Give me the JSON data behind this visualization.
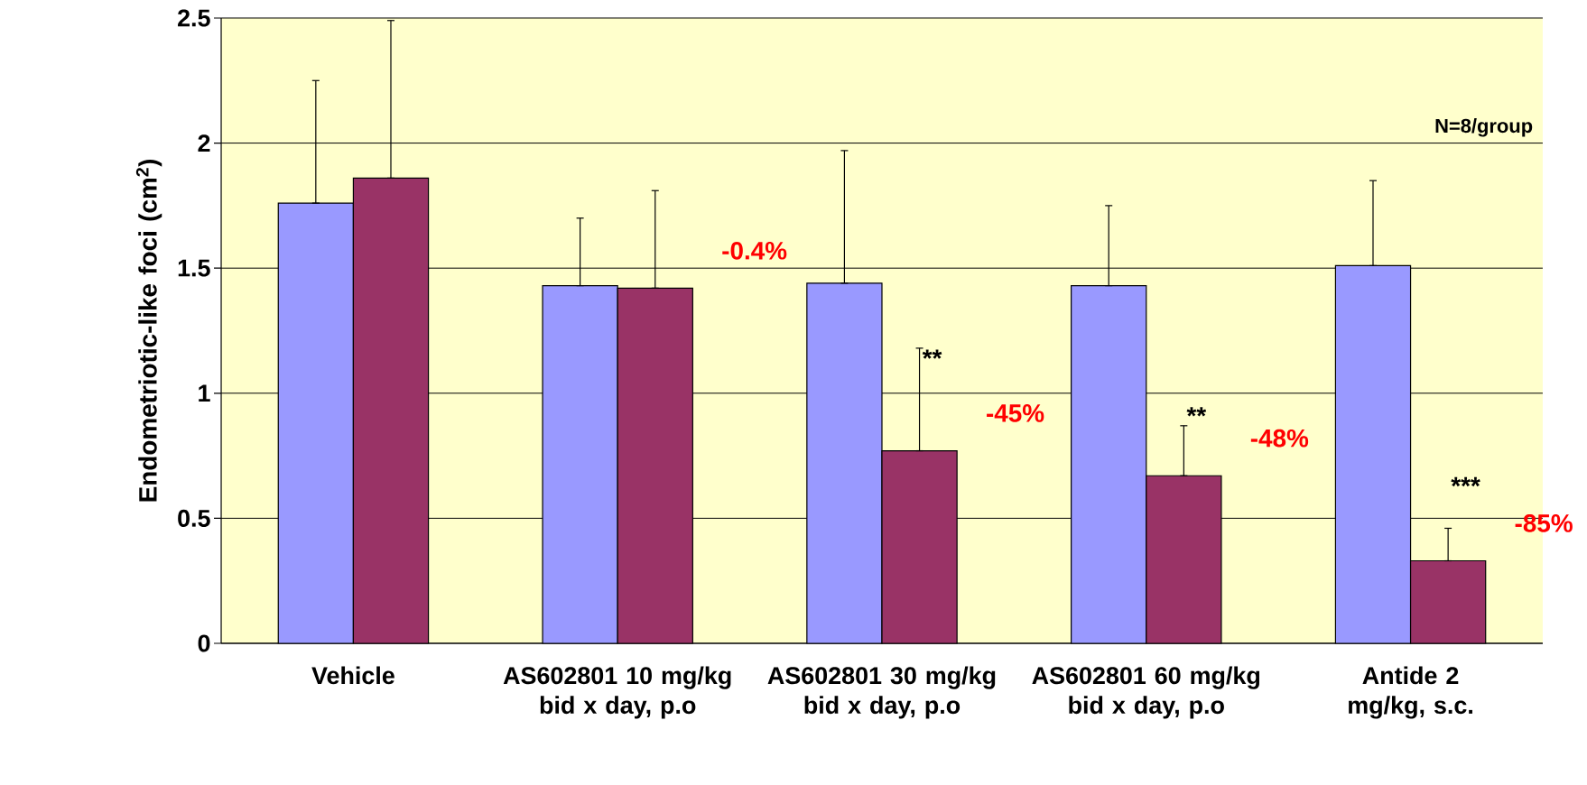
{
  "chart_data": {
    "type": "bar",
    "ylabel": "Endometriotic-like foci (cm$^{2}$)",
    "categories": [
      "Vehicle",
      "AS602801 10 mg/kg bid x day, p.o",
      "AS602801 30 mg/kg bid x day, p.o",
      "AS602801 60 mg/kg bid x day, p.o",
      "Antide 2 mg/kg, s.c."
    ],
    "series": [
      {
        "color": "#9999ff",
        "values": [
          1.76,
          1.43,
          1.44,
          1.43,
          1.51
        ],
        "errors": [
          [
            1.76,
            2.25
          ],
          [
            1.43,
            1.7
          ],
          [
            1.44,
            1.97
          ],
          [
            1.43,
            1.75
          ],
          [
            1.51,
            1.85
          ]
        ]
      },
      {
        "color": "#993366",
        "values": [
          1.86,
          1.42,
          0.77,
          0.67,
          0.33
        ],
        "errors": [
          [
            1.86,
            2.49
          ],
          [
            1.42,
            1.81
          ],
          [
            0.77,
            1.18
          ],
          [
            0.67,
            0.87
          ],
          [
            0.33,
            0.46
          ]
        ]
      }
    ],
    "ylim": [
      0,
      2.5
    ],
    "yticks": [
      0,
      0.5,
      1,
      1.5,
      2,
      2.5
    ],
    "grid": "y",
    "annotations": [
      "N=8/group",
      {
        "text": "**",
        "x": "AS602801 30 mg/kg bid x day, p.o",
        "y": 1.14
      },
      {
        "text": "**",
        "x": "AS602801 60 mg/kg bid x day, p.o",
        "y": 0.91
      },
      {
        "text": "***",
        "x": "Antide 2 mg/kg, s.c.",
        "y": 0.63
      },
      "-0.4%",
      "-45%",
      "-48%",
      "-85%"
    ]
  }
}
